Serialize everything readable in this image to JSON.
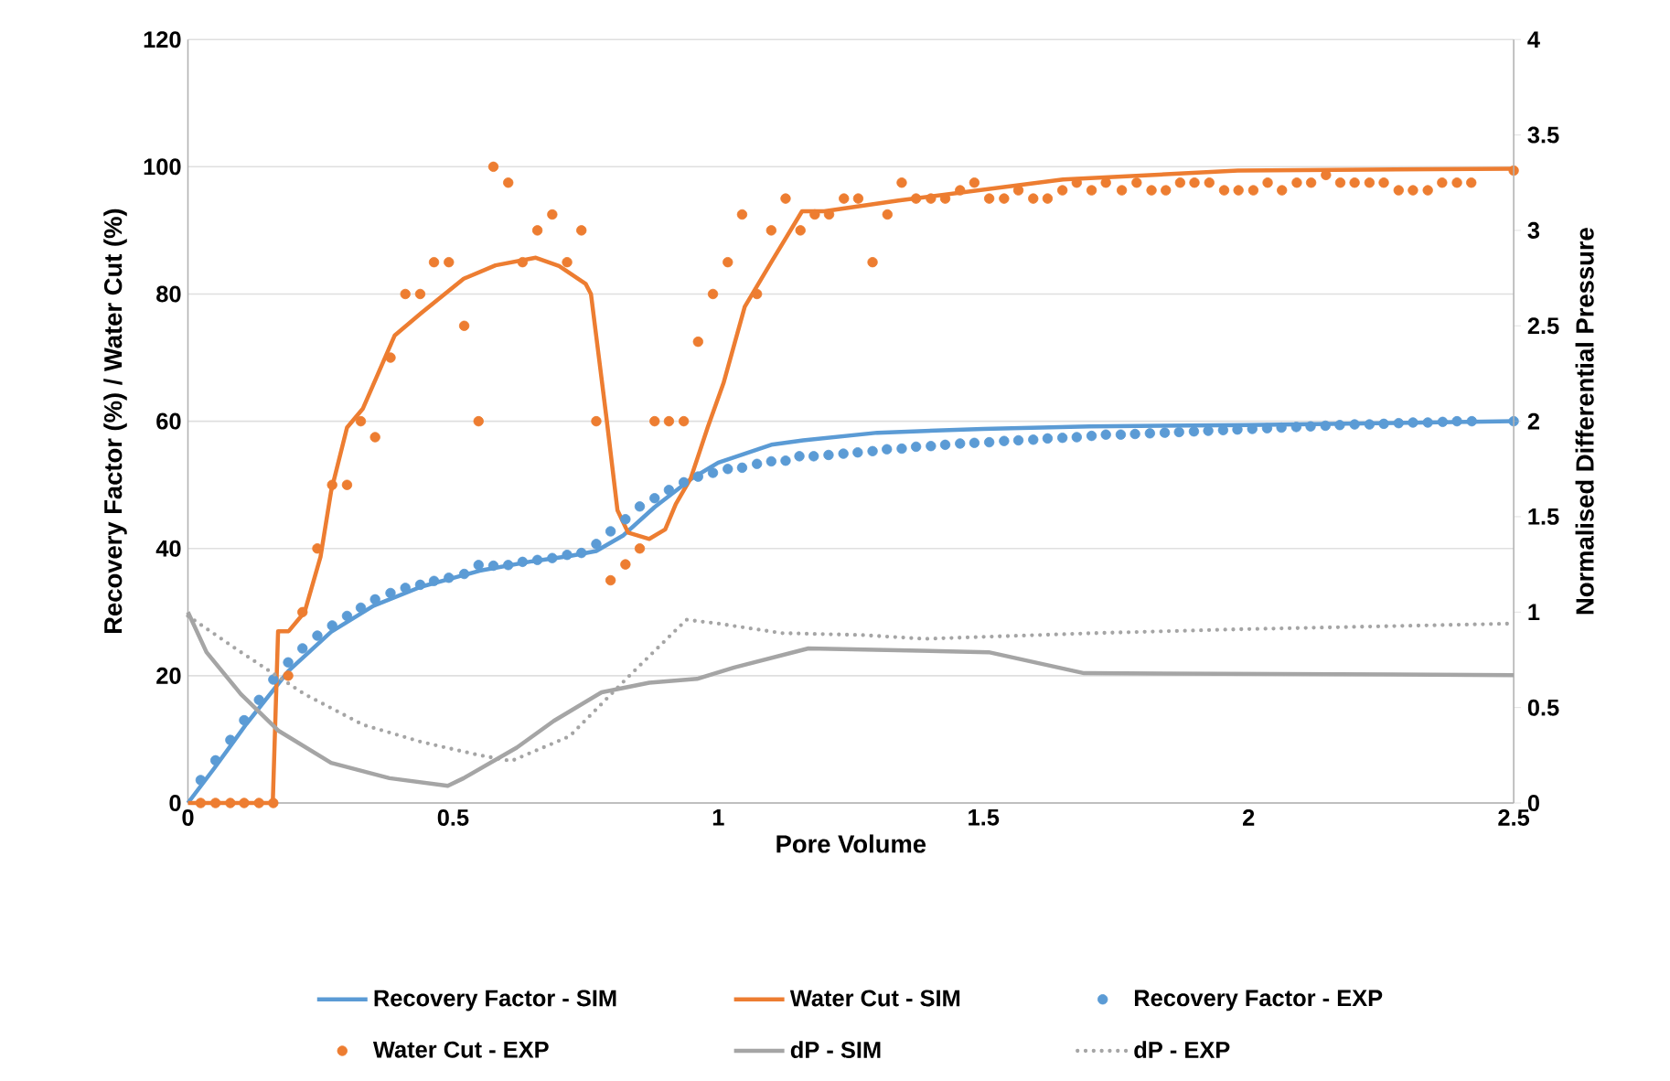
{
  "chart_data": {
    "type": "line",
    "xlabel": "Pore Volume",
    "ylabel": "Recovery Factor (%) / Water Cut (%)",
    "y2label": "Normalised Differential Pressure",
    "xlim": [
      0,
      2.5
    ],
    "xticks": [
      0,
      0.5,
      1,
      1.5,
      2,
      2.5
    ],
    "ylim": [
      0,
      120
    ],
    "yticks": [
      0,
      20,
      40,
      60,
      80,
      100,
      120
    ],
    "y2lim": [
      0,
      4
    ],
    "y2ticks": [
      0,
      0.5,
      1,
      1.5,
      2,
      2.5,
      3,
      3.5,
      4
    ],
    "grid": "y",
    "legend": "bottom",
    "series": [
      {
        "name": "Recovery Factor - SIM",
        "color": "#5b9bd5",
        "x": [
          0,
          0.05,
          0.11,
          0.19,
          0.27,
          0.35,
          0.44,
          0.55,
          0.65,
          0.72,
          0.77,
          0.82,
          0.88,
          0.95,
          1.0,
          1.1,
          1.16,
          1.3,
          1.5,
          1.7,
          2.0,
          2.5
        ],
        "values": [
          0,
          5.5,
          12.4,
          20.8,
          26.9,
          31,
          34,
          36.5,
          38,
          38.8,
          39.6,
          42,
          46.5,
          51,
          53.5,
          56.3,
          57,
          58.2,
          58.8,
          59.2,
          59.4,
          60
        ]
      },
      {
        "name": "Water Cut - SIM",
        "color": "#ed7d31",
        "x": [
          0,
          0.16,
          0.17,
          0.19,
          0.22,
          0.25,
          0.27,
          0.3,
          0.33,
          0.39,
          0.44,
          0.52,
          0.58,
          0.656,
          0.7,
          0.75,
          0.76,
          0.775,
          0.79,
          0.81,
          0.83,
          0.87,
          0.9,
          0.92,
          0.948,
          0.98,
          1.01,
          1.05,
          1.1,
          1.158,
          1.2,
          1.34,
          1.65,
          1.98,
          2.5
        ],
        "values": [
          0,
          0,
          27,
          27,
          30,
          38.7,
          49,
          59,
          62,
          73.5,
          77,
          82.4,
          84.5,
          85.7,
          84.4,
          81.6,
          80,
          70,
          60,
          46,
          42.5,
          41.5,
          43,
          47,
          51,
          59,
          66,
          78,
          85,
          93,
          93,
          94.7,
          98,
          99.4,
          99.7
        ]
      },
      {
        "name": "Recovery Factor - EXP",
        "type": "scatter",
        "color": "#5b9bd5",
        "x": [
          0.024,
          0.052,
          0.08,
          0.106,
          0.134,
          0.161,
          0.189,
          0.216,
          0.244,
          0.272,
          0.3,
          0.326,
          0.353,
          0.382,
          0.41,
          0.438,
          0.464,
          0.492,
          0.521,
          0.548,
          0.576,
          0.604,
          0.631,
          0.659,
          0.687,
          0.715,
          0.742,
          0.77,
          0.797,
          0.825,
          0.852,
          0.88,
          0.907,
          0.935,
          0.962,
          0.99,
          1.018,
          1.045,
          1.073,
          1.1,
          1.127,
          1.153,
          1.18,
          1.208,
          1.236,
          1.263,
          1.291,
          1.318,
          1.346,
          1.373,
          1.401,
          1.428,
          1.456,
          1.483,
          1.511,
          1.539,
          1.566,
          1.594,
          1.621,
          1.649,
          1.676,
          1.704,
          1.731,
          1.759,
          1.786,
          1.814,
          1.842,
          1.869,
          1.897,
          1.924,
          1.952,
          1.979,
          2.007,
          2.035,
          2.062,
          2.09,
          2.117,
          2.145,
          2.172,
          2.2,
          2.228,
          2.255,
          2.283,
          2.31,
          2.338,
          2.366,
          2.393,
          2.421,
          2.5
        ],
        "values": [
          3.6,
          6.7,
          9.9,
          13.0,
          16.2,
          19.4,
          22.1,
          24.3,
          26.3,
          27.9,
          29.4,
          30.7,
          32.0,
          33.0,
          33.8,
          34.3,
          34.9,
          35.4,
          36.0,
          37.4,
          37.3,
          37.4,
          37.9,
          38.2,
          38.5,
          39.0,
          39.3,
          40.7,
          42.7,
          44.6,
          46.6,
          47.9,
          49.2,
          50.4,
          51.3,
          51.9,
          52.5,
          52.7,
          53.3,
          53.7,
          53.8,
          54.5,
          54.5,
          54.7,
          54.9,
          55.1,
          55.3,
          55.6,
          55.7,
          56.0,
          56.1,
          56.3,
          56.5,
          56.6,
          56.7,
          56.9,
          57.0,
          57.1,
          57.3,
          57.4,
          57.5,
          57.7,
          57.9,
          57.9,
          58.0,
          58.1,
          58.2,
          58.3,
          58.4,
          58.5,
          58.6,
          58.7,
          58.8,
          58.9,
          59.0,
          59.1,
          59.2,
          59.3,
          59.4,
          59.5,
          59.5,
          59.6,
          59.7,
          59.8,
          59.8,
          59.9,
          60.0,
          60.0,
          60.0
        ]
      },
      {
        "name": "Water Cut - EXP",
        "type": "scatter",
        "color": "#ed7d31",
        "x": [
          0.024,
          0.052,
          0.08,
          0.106,
          0.134,
          0.161,
          0.189,
          0.216,
          0.244,
          0.272,
          0.3,
          0.326,
          0.353,
          0.382,
          0.41,
          0.438,
          0.464,
          0.492,
          0.521,
          0.548,
          0.576,
          0.604,
          0.631,
          0.659,
          0.687,
          0.715,
          0.742,
          0.77,
          0.797,
          0.825,
          0.852,
          0.88,
          0.907,
          0.935,
          0.962,
          0.99,
          1.018,
          1.045,
          1.073,
          1.1,
          1.127,
          1.155,
          1.182,
          1.209,
          1.237,
          1.264,
          1.291,
          1.319,
          1.346,
          1.373,
          1.401,
          1.428,
          1.456,
          1.483,
          1.511,
          1.539,
          1.566,
          1.594,
          1.621,
          1.649,
          1.676,
          1.704,
          1.731,
          1.761,
          1.789,
          1.817,
          1.844,
          1.871,
          1.898,
          1.926,
          1.954,
          1.981,
          2.009,
          2.036,
          2.063,
          2.091,
          2.118,
          2.146,
          2.173,
          2.2,
          2.228,
          2.255,
          2.283,
          2.31,
          2.338,
          2.365,
          2.393,
          2.42,
          2.5
        ],
        "values": [
          0,
          0,
          0,
          0,
          0,
          0,
          20,
          30,
          40,
          50,
          50,
          60,
          57.5,
          70,
          80,
          80,
          85,
          85,
          75,
          60,
          100,
          97.5,
          85,
          90,
          92.5,
          85,
          90,
          60,
          35,
          37.5,
          40,
          60,
          60,
          60,
          72.5,
          80,
          85,
          92.5,
          80,
          90,
          95,
          90,
          92.5,
          92.5,
          95,
          95,
          85,
          92.5,
          97.5,
          95,
          95,
          95,
          96.3,
          97.5,
          95,
          95,
          96.3,
          95,
          95,
          96.3,
          97.5,
          96.3,
          97.5,
          96.3,
          97.5,
          96.3,
          96.3,
          97.5,
          97.5,
          97.5,
          96.3,
          96.3,
          96.3,
          97.5,
          96.3,
          97.5,
          97.5,
          98.7,
          97.5,
          97.5,
          97.5,
          97.5,
          96.3,
          96.3,
          96.3,
          97.5,
          97.5,
          97.5,
          99.4
        ]
      },
      {
        "name": "dP - SIM",
        "axis": "y2",
        "color": "#a5a5a5",
        "x": [
          0,
          0.035,
          0.1,
          0.17,
          0.27,
          0.38,
          0.49,
          0.52,
          0.62,
          0.69,
          0.78,
          0.87,
          0.96,
          1.03,
          1.1,
          1.17,
          1.51,
          1.69,
          2.5
        ],
        "values": [
          1.0,
          0.79,
          0.57,
          0.38,
          0.21,
          0.13,
          0.09,
          0.13,
          0.29,
          0.43,
          0.58,
          0.63,
          0.65,
          0.71,
          0.76,
          0.81,
          0.79,
          0.68,
          0.67
        ]
      },
      {
        "name": "dP - EXP",
        "axis": "y2",
        "line_style": "dotted",
        "color": "#a5a5a5",
        "x": [
          0,
          0.1,
          0.22,
          0.33,
          0.44,
          0.55,
          0.61,
          0.72,
          0.83,
          0.94,
          1.0,
          1.12,
          1.27,
          1.39,
          1.71,
          1.98,
          2.5
        ],
        "values": [
          0.98,
          0.79,
          0.57,
          0.41,
          0.32,
          0.25,
          0.22,
          0.35,
          0.66,
          0.96,
          0.94,
          0.89,
          0.88,
          0.86,
          0.89,
          0.91,
          0.94
        ]
      }
    ]
  }
}
